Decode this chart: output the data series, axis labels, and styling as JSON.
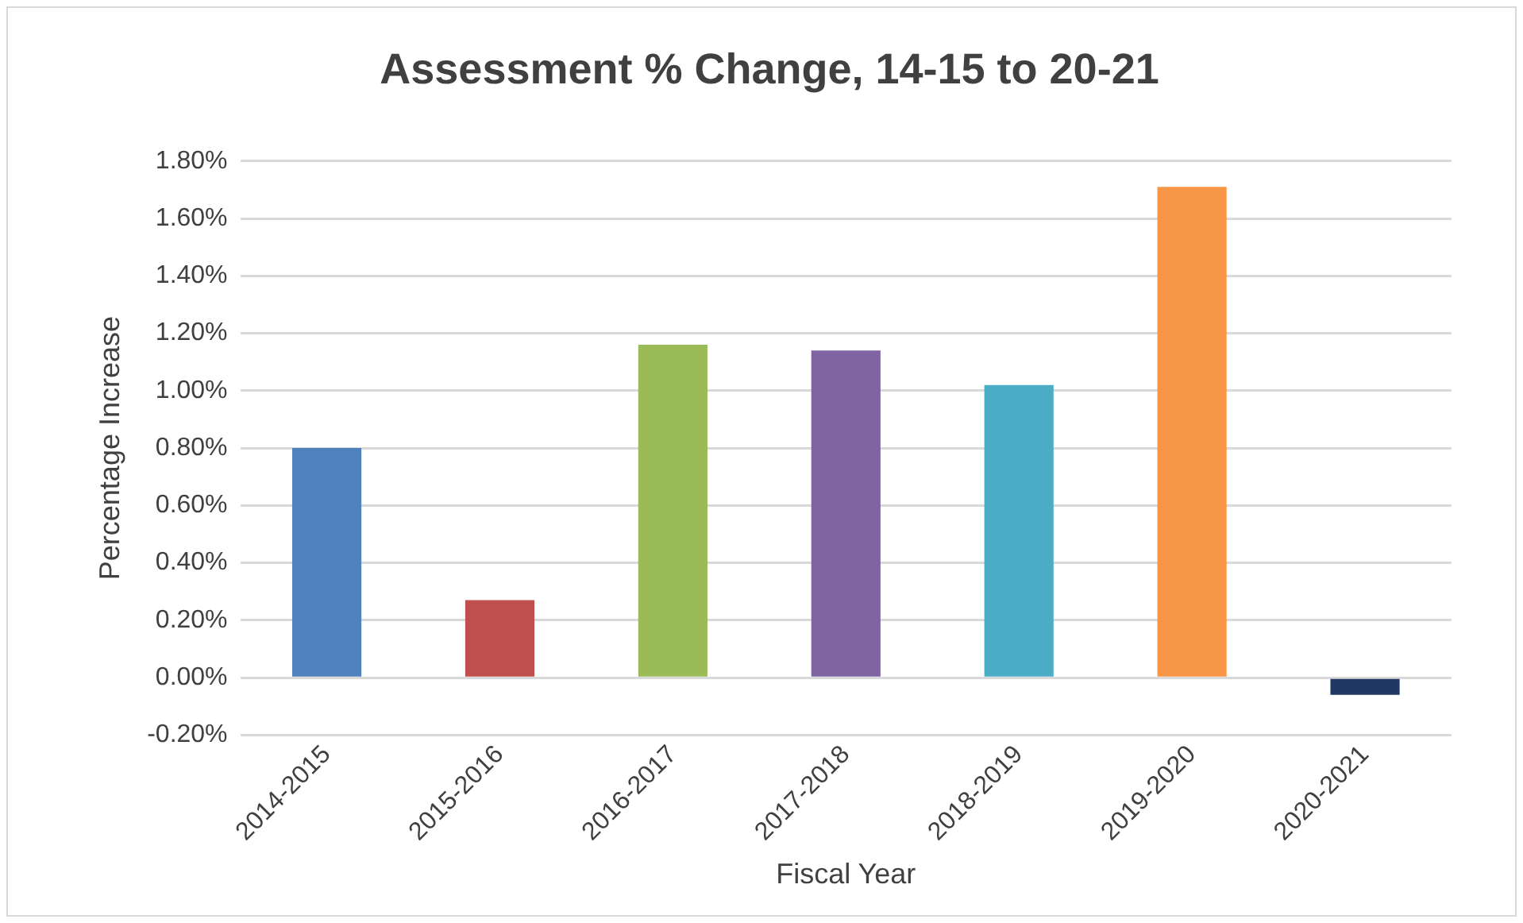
{
  "chart_data": {
    "type": "bar",
    "title": "Assessment % Change, 14-15 to 20-21",
    "xlabel": "Fiscal Year",
    "ylabel": "Percentage Increase",
    "categories": [
      "2014-2015",
      "2015-2016",
      "2016-2017",
      "2017-2018",
      "2018-2019",
      "2019-2020",
      "2020-2021"
    ],
    "values": [
      0.8,
      0.27,
      1.16,
      1.14,
      1.02,
      1.71,
      -0.06
    ],
    "colors": [
      "#4f81bd",
      "#c0504d",
      "#9bbb59",
      "#8064a2",
      "#4bacc6",
      "#f79646",
      "#1f3864"
    ],
    "ylim": [
      -0.2,
      1.8
    ],
    "yticks": [
      {
        "value": -0.2,
        "label": "-0.20%"
      },
      {
        "value": 0,
        "label": "0.00%"
      },
      {
        "value": 0.2,
        "label": "0.20%"
      },
      {
        "value": 0.4,
        "label": "0.40%"
      },
      {
        "value": 0.6,
        "label": "0.60%"
      },
      {
        "value": 0.8,
        "label": "0.80%"
      },
      {
        "value": 1,
        "label": "1.00%"
      },
      {
        "value": 1.2,
        "label": "1.20%"
      },
      {
        "value": 1.4,
        "label": "1.40%"
      },
      {
        "value": 1.6,
        "label": "1.60%"
      },
      {
        "value": 1.8,
        "label": "1.80%"
      }
    ],
    "grid": "y",
    "legend": false
  }
}
